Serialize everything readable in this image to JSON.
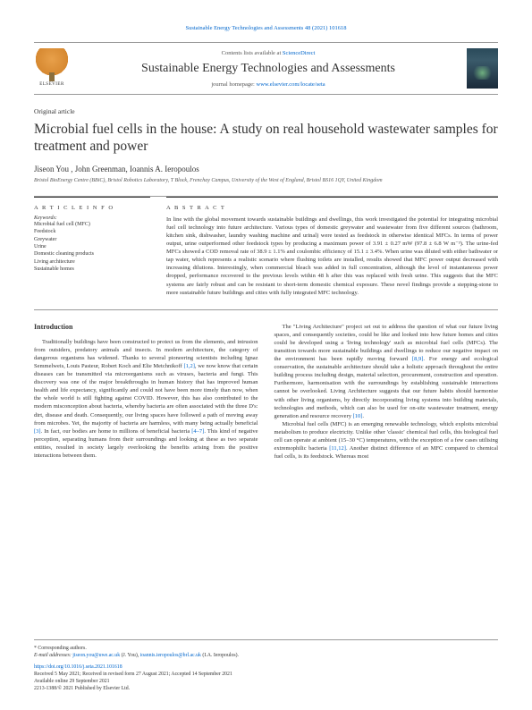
{
  "header_link": "Sustainable Energy Technologies and Assessments 48 (2021) 101618",
  "contents_text": "Contents lists available at",
  "contents_link": "ScienceDirect",
  "journal_name": "Sustainable Energy Technologies and Assessments",
  "homepage_text": "journal homepage:",
  "homepage_link": "www.elsevier.com/locate/seta",
  "elsevier_label": "ELSEVIER",
  "article_type": "Original article",
  "title": "Microbial fuel cells in the house: A study on real household wastewater samples for treatment and power",
  "authors": "Jiseon You , John Greenman, Ioannis A. Ieropoulos",
  "affiliation": "Bristol BioEnergy Centre (BBiC), Bristol Robotics Laboratory, T Block, Frenchay Campus, University of the West of England, Bristol BS16 1QY, United Kingdom",
  "article_info_header": "A R T I C L E  I N F O",
  "abstract_header": "A B S T R A C T",
  "keywords_label": "Keywords:",
  "keywords": [
    "Microbial fuel cell (MFC)",
    "Feedstock",
    "Greywater",
    "Urine",
    "Domestic cleaning products",
    "Living architecture",
    "Sustainable homes"
  ],
  "abstract": "In line with the global movement towards sustainable buildings and dwellings, this work investigated the potential for integrating microbial fuel cell technology into future architecture. Various types of domestic greywater and wastewater from five different sources (bathroom, kitchen sink, dishwasher, laundry washing machine and urinal) were tested as feedstock in otherwise identical MFCs. In terms of power output, urine outperformed other feedstock types by producing a maximum power of 3.91 ± 0.27 mW (97.8 ± 6.8 W m⁻³). The urine-fed MFCs showed a COD removal rate of 38.9 ± 1.1% and coulombic efficiency of 15.1 ± 3.4%. When urine was diluted with either bathwater or tap water, which represents a realistic scenario where flushing toilets are installed, results showed that MFC power output decreased with increasing dilutions. Interestingly, when commercial bleach was added in full concentration, although the level of instantaneous power dropped, performance recovered to the previous levels within 48 h after this was replaced with fresh urine. This suggests that the MFC systems are fairly robust and can be resistant to short-term domestic chemical exposure. These novel findings provide a stepping-stone to more sustainable future buildings and cities with fully integrated MFC technology.",
  "intro_header": "Introduction",
  "col1_para1": "Traditionally buildings have been constructed to protect us from the elements, and intrusion from outsiders, predatory animals and insects. In modern architecture, the category of dangerous organisms has widened. Thanks to several pioneering scientists including Ignaz Semmelweis, Louis Pasteur, Robert Koch and Elie Metchnikoff",
  "ref_12": "[1,2]",
  "col1_para1b": ", we now know that certain diseases can be transmitted via microorganisms such as viruses, bacteria and fungi. This discovery was one of the major breakthroughs in human history that has improved human health and life expectancy, significantly and could not have been more timely than now, when the whole world is still fighting against COVID. However, this has also contributed to the modern misconception about bacteria, whereby bacteria are often associated with the three D's: dirt, disease and death. Consequently, our living spaces have followed a path of moving away from microbes. Yet, the majority of bacteria are harmless, with many being actually beneficial",
  "ref_3": "[3]",
  "col1_para1c": ". In fact, our bodies are home to millions of beneficial bacteria",
  "ref_47": "[4–7]",
  "col1_para1d": ". This kind of negative perception, separating humans from their surroundings and looking at these as two separate entities, resulted in society largely overlooking the benefits arising from the positive interactions between them.",
  "col2_para1": "The \"Living Architecture\" project set out to address the question of what our future living spaces, and consequently societies, could be like and looked into how future homes and cities could be developed using a 'living technology' such as microbial fuel cells (MFCs). The transition towards more sustainable buildings and dwellings to reduce our negative impact on the environment has been rapidly moving forward",
  "ref_89": "[8,9]",
  "col2_para1b": ". For energy and ecological conservation, the sustainable architecture should take a holistic approach throughout the entire building process including design, material selection, procurement, construction and operation. Furthermore, harmonisation with the surroundings by establishing sustainable interactions cannot be overlooked. Living Architecture suggests that our future habits should harmonise with other living organisms, by directly incorporating living systems into building materials, technologies and methods, which can also be used for on-site wastewater treatment, energy generation and resource recovery",
  "ref_10": "[10]",
  "col2_para2": "Microbial fuel cells (MFC) is an emerging renewable technology, which exploits microbial metabolism to produce electricity. Unlike other 'classic' chemical fuel cells, this biological fuel cell can operate at ambient (15–30 °C) temperatures, with the exception of a few cases utilising extremophilic bacteria",
  "ref_1112": "[11,12]",
  "col2_para2b": ". Another distinct difference of an MFC compared to chemical fuel cells, is its feedstock. Whereas most",
  "footer": {
    "corresponding": "* Corresponding authors.",
    "email_label": "E-mail addresses:",
    "email1": "jiseon.you@uwe.ac.uk",
    "email1_name": "(J. You),",
    "email2": "ioannis.ieropoulos@brl.ac.uk",
    "email2_name": "(I.A. Ieropoulos).",
    "doi": "https://doi.org/10.1016/j.seta.2021.101618",
    "received": "Received 5 May 2021; Received in revised form 27 August 2021; Accepted 14 September 2021",
    "available": "Available online 29 September 2021",
    "copyright": "2213-1388/© 2021 Published by Elsevier Ltd."
  }
}
